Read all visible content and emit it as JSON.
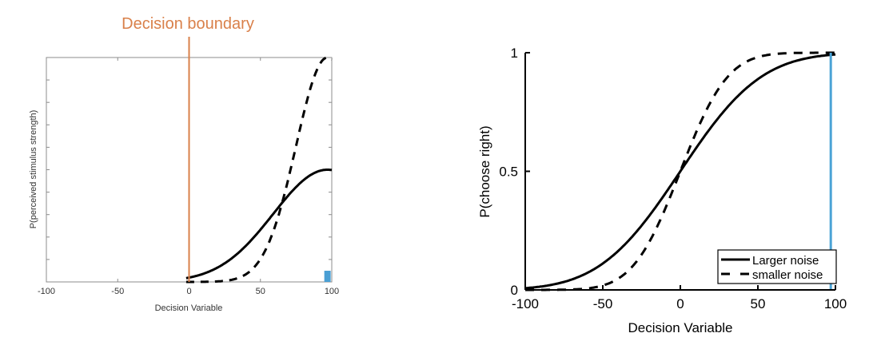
{
  "chart_data": [
    {
      "type": "line",
      "title": "Decision boundary",
      "xlabel": "Decision Variable",
      "ylabel": "P(perceived stimulus strength)",
      "xlim": [
        -100,
        100
      ],
      "ylim": [
        0,
        1
      ],
      "xticks": [
        "-100",
        "-50",
        "0",
        "50",
        "100"
      ],
      "yticks_count": 10,
      "grid": false,
      "decision_boundary_x": 0,
      "marker_x": 97,
      "series": [
        {
          "name": "Larger noise",
          "style": "solid",
          "model": "gaussian",
          "mu": 97,
          "sigma": 38,
          "amplitude": 0.5,
          "x_range": [
            -2,
            100
          ]
        },
        {
          "name": "smaller noise",
          "style": "dashed",
          "model": "gaussian",
          "mu": 97,
          "sigma": 22,
          "amplitude": 1.0,
          "x_range": [
            -2,
            100
          ]
        }
      ],
      "colors": {
        "boundary": "#d9804a",
        "marker": "#4a9fd4",
        "axis": "#8c8c8c"
      }
    },
    {
      "type": "line",
      "title": "",
      "xlabel": "Decision Variable",
      "ylabel": "P(choose right)",
      "xlim": [
        -100,
        100
      ],
      "ylim": [
        0,
        1
      ],
      "xticks": [
        "-100",
        "-50",
        "0",
        "50",
        "100"
      ],
      "yticks": [
        "0",
        "0.5",
        "1"
      ],
      "grid": false,
      "legend_position": "bottom-right",
      "marker_x": 97,
      "series": [
        {
          "name": "Larger noise",
          "style": "solid",
          "model": "cumulative-normal",
          "mu": 0,
          "sigma": 41
        },
        {
          "name": "smaller noise",
          "style": "dashed",
          "model": "cumulative-normal",
          "mu": 0,
          "sigma": 24
        }
      ],
      "colors": {
        "marker": "#4aa3d6",
        "axis": "#000000"
      }
    }
  ]
}
